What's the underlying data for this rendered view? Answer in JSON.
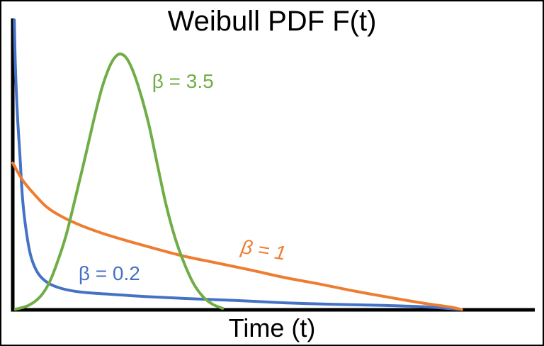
{
  "page": {
    "background": "#ffffff",
    "border_color": "#000000"
  },
  "chart_data": {
    "type": "line",
    "title": "Weibull PDF F(t)",
    "xlabel": "Time (t)",
    "ylabel": "",
    "grid": false,
    "legend_position": "inline-labels",
    "axis_color": "#000000",
    "text_color": "#000000",
    "x_axis": {
      "visible": true,
      "ticks": []
    },
    "y_axis": {
      "visible": true,
      "ticks": []
    },
    "x_range_note": "unlabeled schematic time axis, t from 0 to 1 (normalized)",
    "series": [
      {
        "name": "β = 0.2",
        "beta": 0.2,
        "color": "#4472C4",
        "label": {
          "x": 0.185,
          "y": 0.124,
          "rotate": 0,
          "italic": false
        },
        "points": [
          [
            0.003,
            0.995
          ],
          [
            0.005,
            0.839
          ],
          [
            0.009,
            0.669
          ],
          [
            0.014,
            0.523
          ],
          [
            0.019,
            0.377
          ],
          [
            0.026,
            0.268
          ],
          [
            0.035,
            0.182
          ],
          [
            0.049,
            0.124
          ],
          [
            0.068,
            0.092
          ],
          [
            0.094,
            0.073
          ],
          [
            0.13,
            0.061
          ],
          [
            0.182,
            0.054
          ],
          [
            0.25,
            0.046
          ],
          [
            0.331,
            0.039
          ],
          [
            0.426,
            0.032
          ],
          [
            0.521,
            0.024
          ],
          [
            0.616,
            0.019
          ],
          [
            0.711,
            0.015
          ],
          [
            0.792,
            0.01
          ],
          [
            0.853,
            0.002
          ]
        ]
      },
      {
        "name": "β = 1",
        "beta": 1,
        "color": "#ED7D31",
        "label": {
          "x": 0.48,
          "y": 0.204,
          "rotate": 9,
          "italic": true
        },
        "points": [
          [
            0.0,
            0.504
          ],
          [
            0.019,
            0.445
          ],
          [
            0.041,
            0.397
          ],
          [
            0.065,
            0.353
          ],
          [
            0.095,
            0.319
          ],
          [
            0.13,
            0.29
          ],
          [
            0.171,
            0.263
          ],
          [
            0.217,
            0.238
          ],
          [
            0.269,
            0.212
          ],
          [
            0.326,
            0.185
          ],
          [
            0.385,
            0.163
          ],
          [
            0.45,
            0.139
          ],
          [
            0.518,
            0.112
          ],
          [
            0.589,
            0.088
          ],
          [
            0.659,
            0.063
          ],
          [
            0.727,
            0.041
          ],
          [
            0.79,
            0.022
          ],
          [
            0.837,
            0.01
          ],
          [
            0.86,
            0.001
          ]
        ]
      },
      {
        "name": "β = 3.5",
        "beta": 3.5,
        "color": "#70AD47",
        "label": {
          "x": 0.326,
          "y": 0.783,
          "rotate": 0,
          "italic": false
        },
        "points": [
          [
            0.005,
            0.002
          ],
          [
            0.03,
            0.015
          ],
          [
            0.052,
            0.044
          ],
          [
            0.069,
            0.09
          ],
          [
            0.085,
            0.161
          ],
          [
            0.102,
            0.255
          ],
          [
            0.119,
            0.377
          ],
          [
            0.137,
            0.511
          ],
          [
            0.155,
            0.65
          ],
          [
            0.171,
            0.762
          ],
          [
            0.186,
            0.837
          ],
          [
            0.197,
            0.869
          ],
          [
            0.206,
            0.878
          ],
          [
            0.217,
            0.866
          ],
          [
            0.229,
            0.825
          ],
          [
            0.244,
            0.747
          ],
          [
            0.261,
            0.633
          ],
          [
            0.277,
            0.499
          ],
          [
            0.294,
            0.358
          ],
          [
            0.312,
            0.241
          ],
          [
            0.33,
            0.153
          ],
          [
            0.347,
            0.088
          ],
          [
            0.365,
            0.044
          ],
          [
            0.383,
            0.019
          ],
          [
            0.402,
            0.005
          ]
        ]
      }
    ]
  }
}
